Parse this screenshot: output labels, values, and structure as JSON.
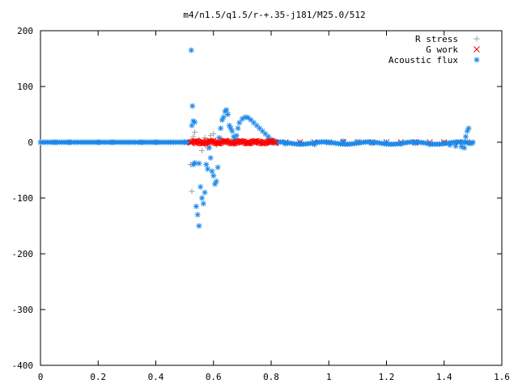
{
  "chart_data": {
    "type": "scatter",
    "title": "m4/n1.5/q1.5/r-+.35-j181/M25.0/512",
    "xlabel": "",
    "ylabel": "",
    "xlim": [
      0,
      1.6
    ],
    "ylim": [
      -400,
      200
    ],
    "x_ticks": [
      0,
      0.2,
      0.4,
      0.6,
      0.8,
      1,
      1.2,
      1.4,
      1.6
    ],
    "y_ticks": [
      200,
      100,
      0,
      -100,
      -200,
      -300,
      -400
    ],
    "legend_position": "top-right",
    "series": [
      {
        "name": "R stress",
        "marker": "+",
        "color": "#a0a0a0",
        "points": [
          [
            0.52,
            -40
          ],
          [
            0.525,
            -88
          ],
          [
            0.53,
            10
          ],
          [
            0.535,
            18
          ],
          [
            0.54,
            -3
          ],
          [
            0.55,
            5
          ],
          [
            0.56,
            -15
          ],
          [
            0.57,
            8
          ],
          [
            0.58,
            -10
          ],
          [
            0.59,
            12
          ],
          [
            0.6,
            15
          ],
          [
            0.61,
            -5
          ],
          [
            0.62,
            2
          ],
          [
            0.63,
            5
          ],
          [
            0.65,
            3
          ],
          [
            0.67,
            -4
          ],
          [
            0.7,
            2
          ],
          [
            0.75,
            -2
          ],
          [
            0.8,
            1
          ],
          [
            0.9,
            0
          ],
          [
            1.0,
            0
          ],
          [
            1.2,
            0
          ],
          [
            1.4,
            0
          ],
          [
            1.48,
            1
          ]
        ]
      },
      {
        "name": "G work",
        "marker": "x",
        "color": "#ff0000",
        "points": [
          [
            0.52,
            0
          ],
          [
            0.54,
            -2
          ],
          [
            0.56,
            2
          ],
          [
            0.58,
            -3
          ],
          [
            0.6,
            3
          ],
          [
            0.62,
            -2
          ],
          [
            0.64,
            2
          ],
          [
            0.66,
            -1
          ],
          [
            0.68,
            1
          ],
          [
            0.7,
            0
          ],
          [
            0.72,
            1
          ],
          [
            0.74,
            0
          ],
          [
            0.76,
            1
          ],
          [
            0.78,
            0
          ],
          [
            0.8,
            0
          ],
          [
            0.85,
            0
          ],
          [
            0.9,
            0
          ],
          [
            0.95,
            0
          ],
          [
            1.0,
            0
          ],
          [
            1.05,
            0
          ],
          [
            1.1,
            0
          ],
          [
            1.15,
            0
          ],
          [
            1.2,
            0
          ],
          [
            1.25,
            0
          ],
          [
            1.3,
            0
          ],
          [
            1.35,
            0
          ],
          [
            1.4,
            0
          ],
          [
            1.45,
            0
          ],
          [
            1.48,
            0
          ]
        ]
      },
      {
        "name": "Acoustic flux",
        "marker": "*",
        "color": "#1a88ea",
        "points": [
          [
            0.0,
            0
          ],
          [
            0.05,
            0
          ],
          [
            0.1,
            0
          ],
          [
            0.15,
            0
          ],
          [
            0.2,
            0
          ],
          [
            0.25,
            0
          ],
          [
            0.3,
            0
          ],
          [
            0.35,
            0
          ],
          [
            0.4,
            0
          ],
          [
            0.45,
            0
          ],
          [
            0.5,
            0
          ],
          [
            0.523,
            165
          ],
          [
            0.527,
            65
          ],
          [
            0.525,
            30
          ],
          [
            0.53,
            38
          ],
          [
            0.535,
            36
          ],
          [
            0.53,
            -40
          ],
          [
            0.535,
            -37
          ],
          [
            0.54,
            -115
          ],
          [
            0.545,
            -130
          ],
          [
            0.55,
            -150
          ],
          [
            0.55,
            -38
          ],
          [
            0.555,
            -80
          ],
          [
            0.56,
            -100
          ],
          [
            0.565,
            -110
          ],
          [
            0.57,
            -90
          ],
          [
            0.575,
            -40
          ],
          [
            0.58,
            -48
          ],
          [
            0.585,
            -10
          ],
          [
            0.59,
            -28
          ],
          [
            0.595,
            -52
          ],
          [
            0.6,
            -60
          ],
          [
            0.605,
            -75
          ],
          [
            0.61,
            -70
          ],
          [
            0.615,
            -45
          ],
          [
            0.62,
            8
          ],
          [
            0.625,
            25
          ],
          [
            0.63,
            40
          ],
          [
            0.635,
            45
          ],
          [
            0.64,
            55
          ],
          [
            0.645,
            58
          ],
          [
            0.65,
            50
          ],
          [
            0.655,
            30
          ],
          [
            0.66,
            25
          ],
          [
            0.665,
            20
          ],
          [
            0.67,
            10
          ],
          [
            0.675,
            5
          ],
          [
            0.68,
            12
          ],
          [
            0.685,
            25
          ],
          [
            0.69,
            35
          ],
          [
            0.7,
            42
          ],
          [
            0.71,
            45
          ],
          [
            0.72,
            44
          ],
          [
            0.73,
            40
          ],
          [
            0.74,
            35
          ],
          [
            0.75,
            30
          ],
          [
            0.76,
            25
          ],
          [
            0.77,
            20
          ],
          [
            0.78,
            15
          ],
          [
            0.79,
            10
          ],
          [
            0.8,
            5
          ],
          [
            0.82,
            -2
          ],
          [
            0.85,
            -3
          ],
          [
            0.9,
            -2
          ],
          [
            0.95,
            -4
          ],
          [
            1.0,
            -1
          ],
          [
            1.05,
            2
          ],
          [
            1.1,
            1
          ],
          [
            1.15,
            -2
          ],
          [
            1.2,
            0
          ],
          [
            1.25,
            -3
          ],
          [
            1.3,
            -2
          ],
          [
            1.35,
            -4
          ],
          [
            1.4,
            -2
          ],
          [
            1.42,
            -5
          ],
          [
            1.44,
            -7
          ],
          [
            1.46,
            -8
          ],
          [
            1.47,
            -10
          ],
          [
            1.475,
            10
          ],
          [
            1.48,
            20
          ],
          [
            1.485,
            25
          ],
          [
            1.49,
            -2
          ],
          [
            1.5,
            0
          ]
        ]
      }
    ]
  }
}
